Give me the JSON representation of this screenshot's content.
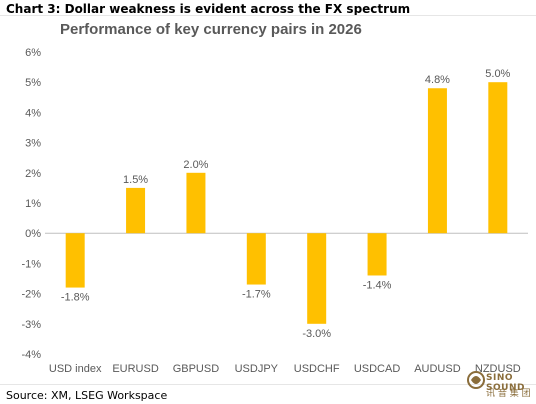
{
  "heading": "Chart 3: Dollar weakness is evident across the FX spectrum",
  "source": "Source: XM, LSEG Workspace",
  "watermark": {
    "name": "SINO SOUND",
    "sub": "讯 音 集 团",
    "color": "#8a6d3b"
  },
  "chart_data": {
    "type": "bar",
    "title": "Performance of key currency pairs in 2026",
    "xlabel": "",
    "ylabel": "",
    "categories": [
      "USD index",
      "EURUSD",
      "GBPUSD",
      "USDJPY",
      "USDCHF",
      "USDCAD",
      "AUDUSD",
      "NZDUSD"
    ],
    "values": [
      -1.8,
      1.5,
      2.0,
      -1.7,
      -3.0,
      -1.4,
      4.8,
      5.0
    ],
    "data_labels": [
      "-1.8%",
      "1.5%",
      "2.0%",
      "-1.7%",
      "-3.0%",
      "-1.4%",
      "4.8%",
      "5.0%"
    ],
    "ylim": [
      -4,
      6
    ],
    "yticks": [
      -4,
      -3,
      -2,
      -1,
      0,
      1,
      2,
      3,
      4,
      5,
      6
    ],
    "ytick_labels": [
      "-4%",
      "-3%",
      "-2%",
      "-1%",
      "0%",
      "1%",
      "2%",
      "3%",
      "4%",
      "5%",
      "6%"
    ],
    "grid": false,
    "legend": "none",
    "bar_color": "#ffc000",
    "zero_line_color": "#bfbfbf",
    "text_color": "#595959"
  }
}
